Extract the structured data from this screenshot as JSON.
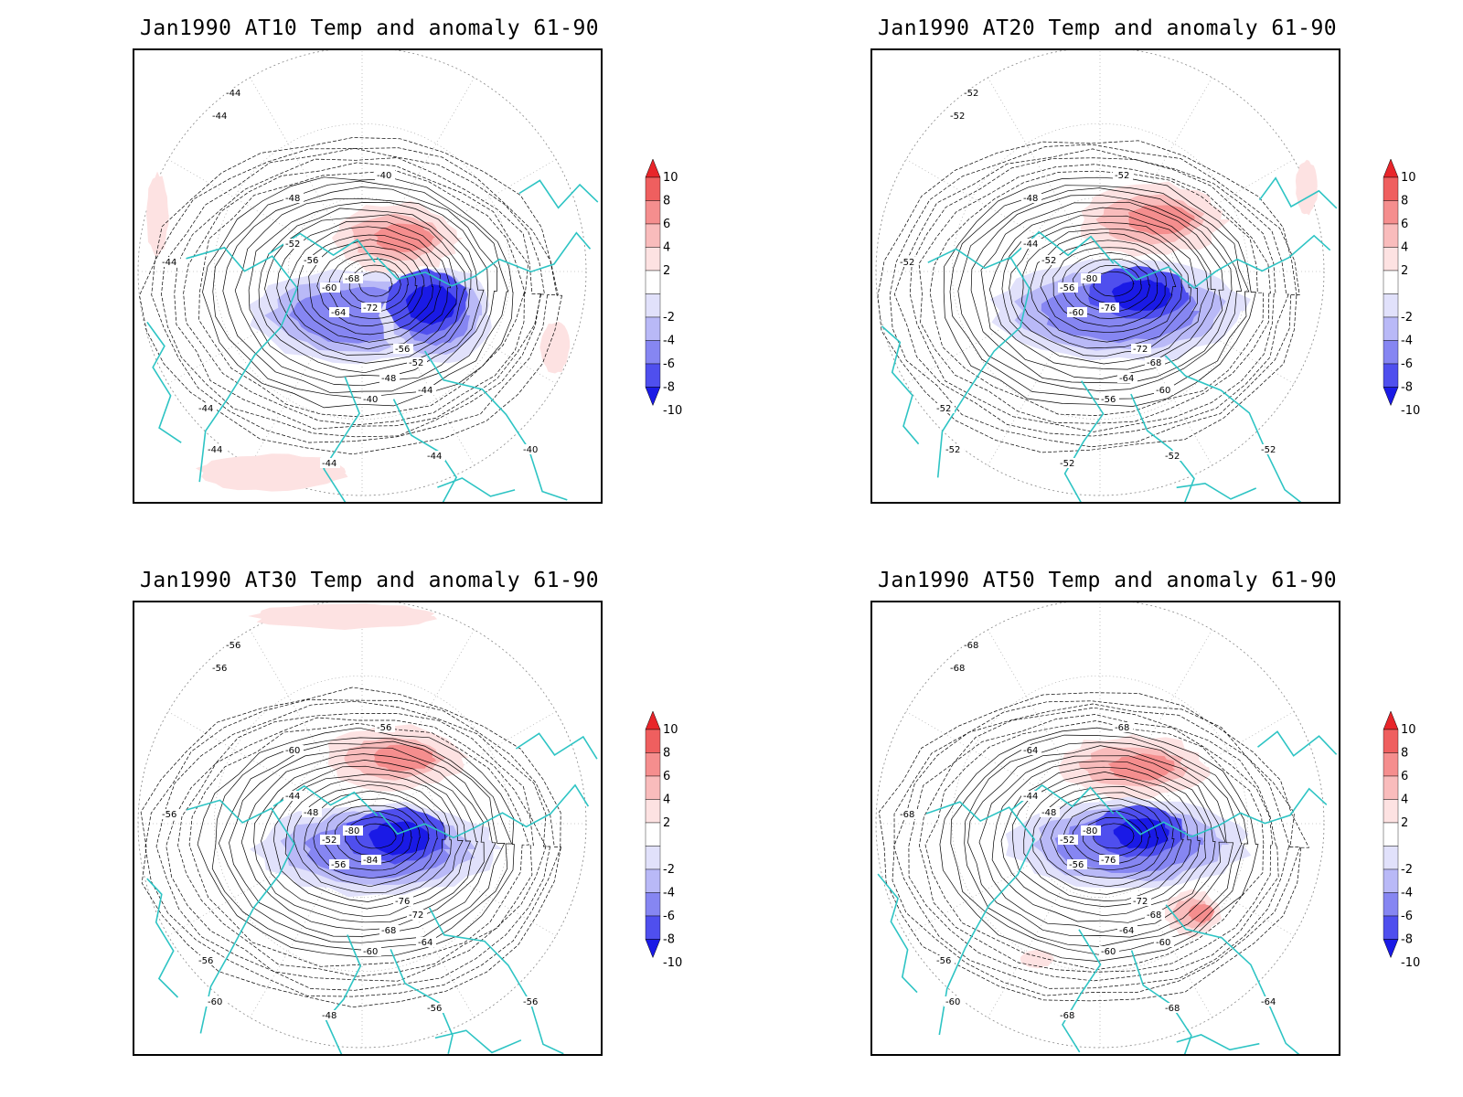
{
  "panels": [
    {
      "title": "Jan1990 AT10 Temp and anomaly 61-90",
      "contour_labels": [
        "-44",
        "-44",
        "-44",
        "-40",
        "-48",
        "-52",
        "-56",
        "-60",
        "-64",
        "-68",
        "-72",
        "-56",
        "-52",
        "-48",
        "-44",
        "-40",
        "-44",
        "-44",
        "-40",
        "-44",
        "-44"
      ]
    },
    {
      "title": "Jan1990 AT20 Temp and anomaly 61-90",
      "contour_labels": [
        "-52",
        "-52",
        "-52",
        "-52",
        "-48",
        "-44",
        "-52",
        "-56",
        "-60",
        "-80",
        "-76",
        "-72",
        "-68",
        "-64",
        "-60",
        "-56",
        "-52",
        "-52",
        "-52",
        "-52",
        "-52"
      ]
    },
    {
      "title": "Jan1990 AT30 Temp and anomaly 61-90",
      "contour_labels": [
        "-56",
        "-56",
        "-56",
        "-56",
        "-60",
        "-44",
        "-48",
        "-52",
        "-56",
        "-80",
        "-84",
        "-76",
        "-72",
        "-68",
        "-64",
        "-60",
        "-56",
        "-60",
        "-56",
        "-56",
        "-48"
      ]
    },
    {
      "title": "Jan1990 AT50 Temp and anomaly 61-90",
      "contour_labels": [
        "-68",
        "-68",
        "-68",
        "-68",
        "-64",
        "-44",
        "-48",
        "-52",
        "-56",
        "-80",
        "-76",
        "-72",
        "-68",
        "-64",
        "-60",
        "-60",
        "-56",
        "-60",
        "-64",
        "-68",
        "-68"
      ]
    }
  ],
  "colorbar": {
    "labels": [
      "10",
      "8",
      "6",
      "4",
      "2",
      "-2",
      "-4",
      "-6",
      "-8",
      "-10"
    ],
    "colors": [
      "#e8252a",
      "#ef5f5f",
      "#f58e8e",
      "#f9bcbc",
      "#fde2e2",
      "#ffffff",
      "#e1e1fb",
      "#b9b9f7",
      "#8686f2",
      "#4f4fee",
      "#1a1ae6"
    ]
  },
  "colors": {
    "coast": "#2ec4c4",
    "contour": "#000000"
  }
}
